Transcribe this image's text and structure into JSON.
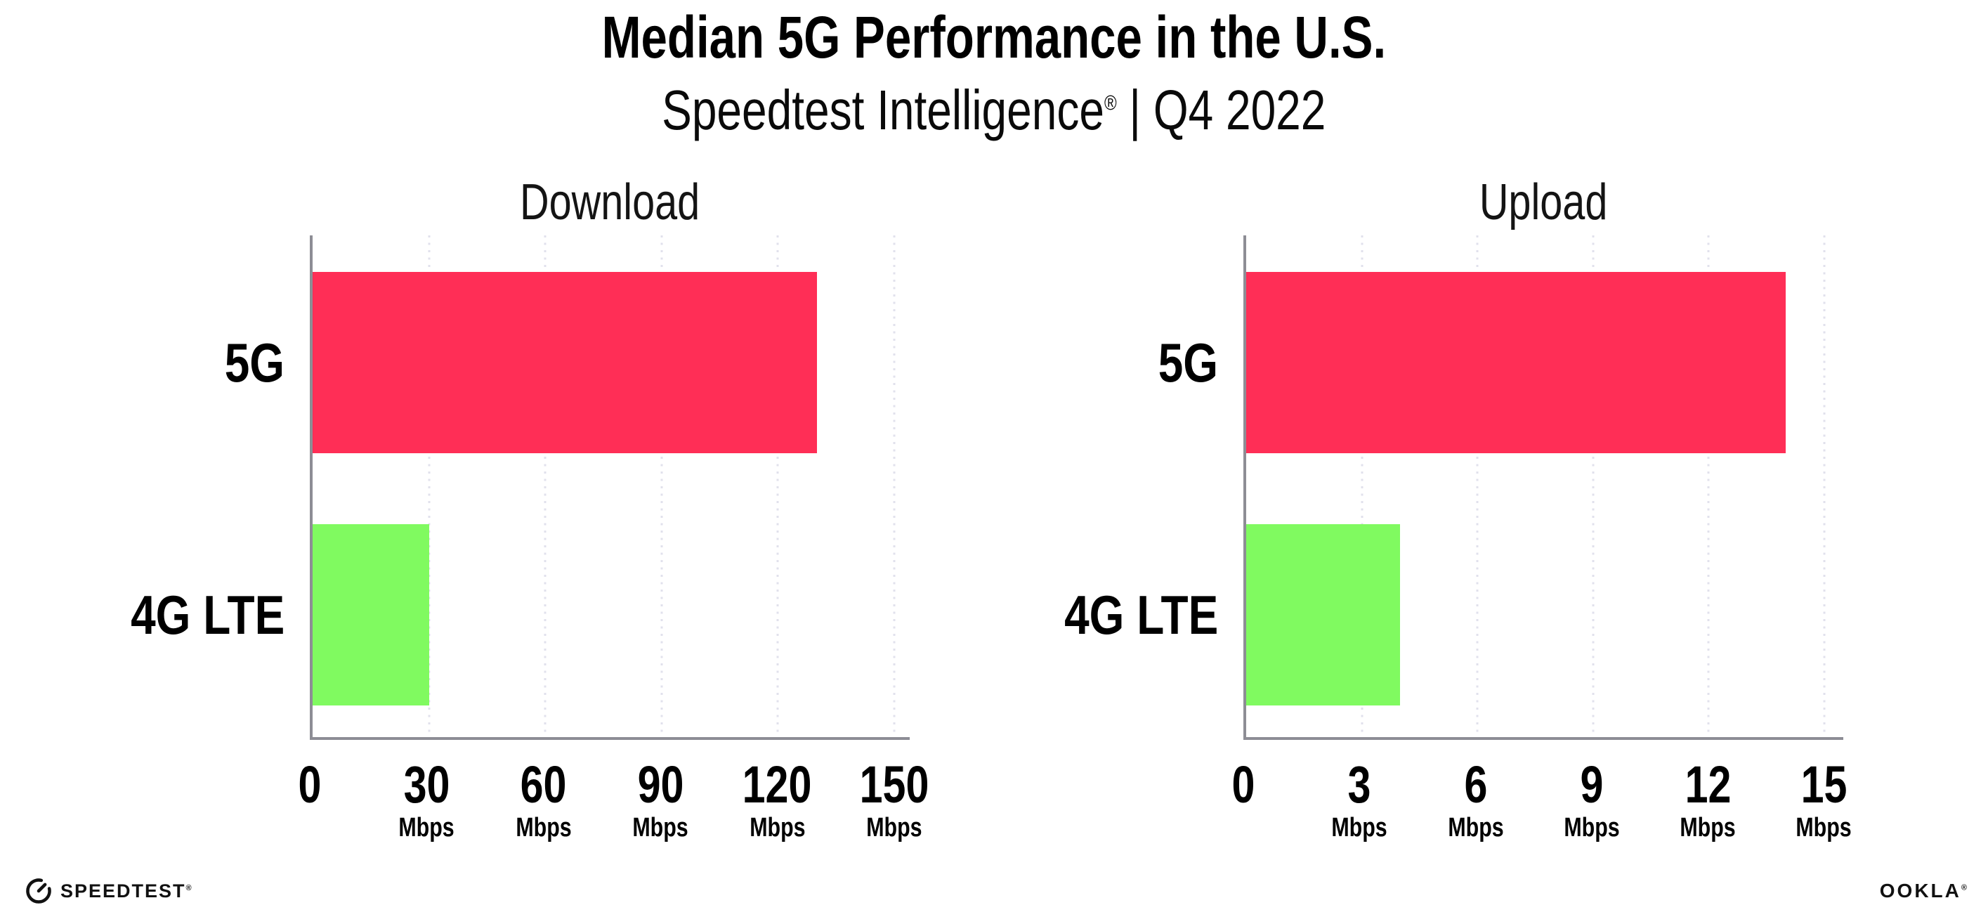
{
  "header": {
    "title": "Median 5G Performance in the U.S.",
    "subtitle_brand": "Speedtest Intelligence",
    "subtitle_mark": "®",
    "subtitle_rest": " | Q4 2022"
  },
  "chart_data": [
    {
      "type": "bar",
      "orientation": "horizontal",
      "title": "Download",
      "unit": "Mbps",
      "categories": [
        "5G",
        "4G LTE"
      ],
      "values": [
        130,
        30
      ],
      "series": [
        {
          "label": "5G",
          "value": 130,
          "color": "#FF2E56"
        },
        {
          "label": "4G LTE",
          "value": 30,
          "color": "#80FA60"
        }
      ],
      "ticks": [
        0,
        30,
        60,
        90,
        120,
        150
      ],
      "axis_max": 154,
      "xlim": [
        0,
        154
      ],
      "grid": "vertical-dotted",
      "legend": "none"
    },
    {
      "type": "bar",
      "orientation": "horizontal",
      "title": "Upload",
      "unit": "Mbps",
      "categories": [
        "5G",
        "4G LTE"
      ],
      "values": [
        14,
        4
      ],
      "series": [
        {
          "label": "5G",
          "value": 14,
          "color": "#FF2E56"
        },
        {
          "label": "4G LTE",
          "value": 4,
          "color": "#80FA60"
        }
      ],
      "ticks": [
        0,
        3,
        6,
        9,
        12,
        15
      ],
      "axis_max": 15.5,
      "xlim": [
        0,
        15.5
      ],
      "grid": "vertical-dotted",
      "legend": "none"
    }
  ],
  "footer": {
    "speedtest_wordmark": "SPEEDTEST",
    "speedtest_mark": "®",
    "ookla_wordmark": "OOKLA",
    "ookla_mark": "®"
  },
  "colors": {
    "bar_5g": "#FF2E56",
    "bar_4g_lte": "#80FA60",
    "axis_line": "#8D8D95",
    "gridline": "#E1E1EC",
    "text": "#000000",
    "background": "#FFFFFF"
  }
}
